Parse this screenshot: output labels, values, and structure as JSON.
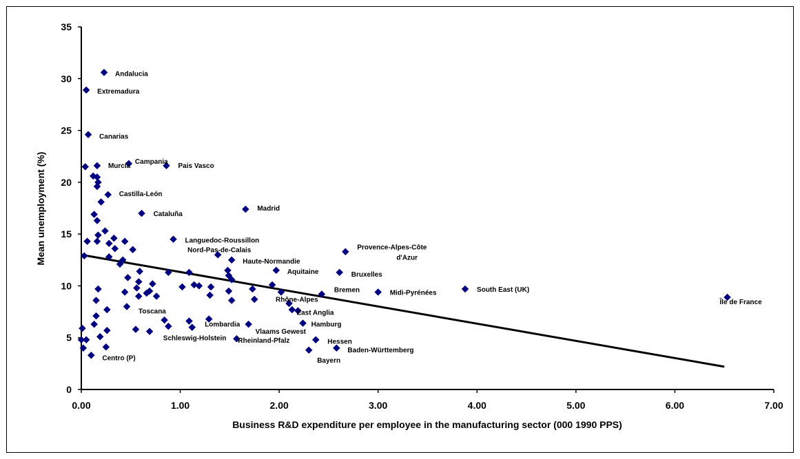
{
  "chart_data": {
    "type": "scatter",
    "title": "",
    "xlabel": "Business R&D expenditure per employee in the manufacturing sector (000 1990 PPS)",
    "ylabel": "Mean unemployment (%)",
    "xlim": [
      0,
      7
    ],
    "ylim": [
      0,
      35
    ],
    "x_ticks": [
      "0.00",
      "1.00",
      "2.00",
      "3.00",
      "4.00",
      "5.00",
      "6.00",
      "7.00"
    ],
    "y_ticks": [
      "0",
      "5",
      "10",
      "15",
      "20",
      "25",
      "30",
      "35"
    ],
    "grid": false,
    "legend": "none",
    "marker_color": "#000080",
    "trendline": {
      "x": [
        0,
        6.5
      ],
      "y": [
        13.0,
        2.2
      ],
      "color": "#000000"
    },
    "points": [
      {
        "x": 0.23,
        "y": 30.6,
        "label": "Andalucia"
      },
      {
        "x": 0.05,
        "y": 28.9,
        "label": "Extremadura"
      },
      {
        "x": 0.07,
        "y": 24.6,
        "label": "Canarias"
      },
      {
        "x": 0.48,
        "y": 21.8,
        "label": "Campania"
      },
      {
        "x": 0.16,
        "y": 21.6,
        "label": "Murcia"
      },
      {
        "x": 0.86,
        "y": 21.6,
        "label": "Pais Vasco"
      },
      {
        "x": 0.27,
        "y": 18.8,
        "label": "Castilla-León"
      },
      {
        "x": 1.66,
        "y": 17.4,
        "label": "Madrid"
      },
      {
        "x": 0.61,
        "y": 17.0,
        "label": "Cataluña"
      },
      {
        "x": 0.93,
        "y": 14.5,
        "label": "Languedoc-Roussillon"
      },
      {
        "x": 2.67,
        "y": 13.3,
        "label": "Provence-Alpes-Côte d'Azur"
      },
      {
        "x": 1.38,
        "y": 13.0,
        "label": "Nord-Pas-de-Calais"
      },
      {
        "x": 1.52,
        "y": 12.5,
        "label": "Haute-Normandie"
      },
      {
        "x": 1.97,
        "y": 11.5,
        "label": "Aquitaine"
      },
      {
        "x": 2.61,
        "y": 11.3,
        "label": "Bruxelles"
      },
      {
        "x": 2.43,
        "y": 9.2,
        "label": "Bremen"
      },
      {
        "x": 3.0,
        "y": 9.4,
        "label": "Midi-Pyrénées"
      },
      {
        "x": 3.88,
        "y": 9.7,
        "label": "South East (UK)"
      },
      {
        "x": 6.53,
        "y": 8.9,
        "label": "Île de France"
      },
      {
        "x": 2.02,
        "y": 9.4,
        "label": "Rhône-Alpes"
      },
      {
        "x": 2.19,
        "y": 7.6,
        "label": "East Anglia"
      },
      {
        "x": 0.46,
        "y": 8.0,
        "label": "Toscana"
      },
      {
        "x": 2.24,
        "y": 6.4,
        "label": "Hamburg"
      },
      {
        "x": 1.29,
        "y": 6.8,
        "label": "Lombardia"
      },
      {
        "x": 1.69,
        "y": 6.3,
        "label": "Vlaams Gewest"
      },
      {
        "x": 1.12,
        "y": 6.0,
        "label": "Schleswig-Holstein"
      },
      {
        "x": 1.57,
        "y": 4.9,
        "label": "Rheinland-Pfalz"
      },
      {
        "x": 2.37,
        "y": 4.8,
        "label": "Hessen"
      },
      {
        "x": 2.58,
        "y": 4.0,
        "label": "Baden-Württemberg"
      },
      {
        "x": 2.3,
        "y": 3.8,
        "label": "Bayern"
      },
      {
        "x": 0.1,
        "y": 3.3,
        "label": "Centro (P)"
      },
      {
        "x": 0.04,
        "y": 21.5
      },
      {
        "x": 0.12,
        "y": 20.6
      },
      {
        "x": 0.16,
        "y": 20.5
      },
      {
        "x": 0.17,
        "y": 20.0
      },
      {
        "x": 0.16,
        "y": 19.6
      },
      {
        "x": 0.2,
        "y": 18.1
      },
      {
        "x": 0.13,
        "y": 16.9
      },
      {
        "x": 0.16,
        "y": 16.3
      },
      {
        "x": 0.24,
        "y": 15.3
      },
      {
        "x": 0.17,
        "y": 14.9
      },
      {
        "x": 0.06,
        "y": 14.3
      },
      {
        "x": 0.16,
        "y": 14.3
      },
      {
        "x": 0.33,
        "y": 14.6
      },
      {
        "x": 0.44,
        "y": 14.3
      },
      {
        "x": 0.28,
        "y": 14.1
      },
      {
        "x": 0.34,
        "y": 13.6
      },
      {
        "x": 0.52,
        "y": 13.5
      },
      {
        "x": 0.03,
        "y": 12.9
      },
      {
        "x": 0.28,
        "y": 12.8
      },
      {
        "x": 0.42,
        "y": 12.5
      },
      {
        "x": 0.39,
        "y": 12.1
      },
      {
        "x": 0.59,
        "y": 11.4
      },
      {
        "x": 0.88,
        "y": 11.3
      },
      {
        "x": 1.09,
        "y": 11.3
      },
      {
        "x": 1.48,
        "y": 11.5
      },
      {
        "x": 1.49,
        "y": 11.0
      },
      {
        "x": 0.47,
        "y": 10.8
      },
      {
        "x": 1.52,
        "y": 10.6
      },
      {
        "x": 0.58,
        "y": 10.4
      },
      {
        "x": 0.72,
        "y": 10.2
      },
      {
        "x": 1.14,
        "y": 10.1
      },
      {
        "x": 1.19,
        "y": 10.0
      },
      {
        "x": 1.02,
        "y": 9.9
      },
      {
        "x": 1.31,
        "y": 9.9
      },
      {
        "x": 1.93,
        "y": 10.1
      },
      {
        "x": 1.73,
        "y": 9.7
      },
      {
        "x": 0.17,
        "y": 9.7
      },
      {
        "x": 0.56,
        "y": 9.8
      },
      {
        "x": 0.44,
        "y": 9.4
      },
      {
        "x": 0.69,
        "y": 9.5
      },
      {
        "x": 0.66,
        "y": 9.3
      },
      {
        "x": 1.49,
        "y": 9.5
      },
      {
        "x": 0.58,
        "y": 9.0
      },
      {
        "x": 0.76,
        "y": 9.0
      },
      {
        "x": 1.3,
        "y": 9.1
      },
      {
        "x": 0.15,
        "y": 8.6
      },
      {
        "x": 1.52,
        "y": 8.6
      },
      {
        "x": 1.75,
        "y": 8.7
      },
      {
        "x": 2.1,
        "y": 8.3
      },
      {
        "x": 2.13,
        "y": 7.7
      },
      {
        "x": 0.26,
        "y": 7.7
      },
      {
        "x": 0.15,
        "y": 7.1
      },
      {
        "x": 0.84,
        "y": 6.7
      },
      {
        "x": 1.09,
        "y": 6.6
      },
      {
        "x": 0.13,
        "y": 6.3
      },
      {
        "x": 0.88,
        "y": 6.1
      },
      {
        "x": 0.01,
        "y": 5.9
      },
      {
        "x": 0.55,
        "y": 5.8
      },
      {
        "x": 0.26,
        "y": 5.7
      },
      {
        "x": 0.69,
        "y": 5.6
      },
      {
        "x": 0.19,
        "y": 5.1
      },
      {
        "x": 0.0,
        "y": 4.8
      },
      {
        "x": 0.05,
        "y": 4.8
      },
      {
        "x": 0.02,
        "y": 4.0
      },
      {
        "x": 0.25,
        "y": 4.1
      }
    ]
  }
}
